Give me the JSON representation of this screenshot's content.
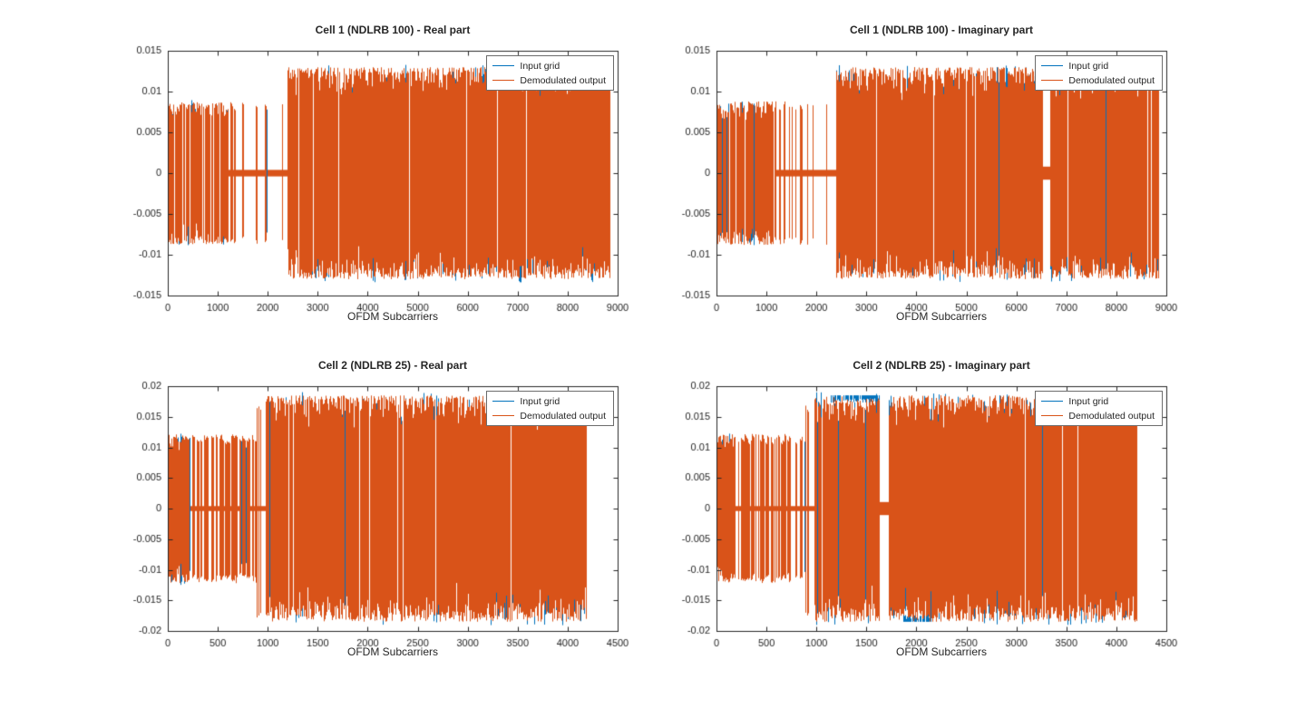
{
  "figure": {
    "background": "#ffffff",
    "axis_color": "#262626",
    "series_orange": "#D95319",
    "series_blue": "#0072BD"
  },
  "chart_data": [
    {
      "type": "line",
      "title": "Cell 1 (NDLRB 100) - Real part",
      "xlabel": "OFDM Subcarriers",
      "xlim": [
        0,
        9000
      ],
      "ylim": [
        -0.015,
        0.015
      ],
      "xticks": [
        0,
        1000,
        2000,
        3000,
        4000,
        5000,
        6000,
        7000,
        8000,
        9000
      ],
      "yticks": [
        -0.015,
        -0.01,
        -0.005,
        0,
        0.005,
        0.01,
        0.015
      ],
      "grid": false,
      "legend": {
        "position": "top-right",
        "entries": [
          {
            "label": "Input grid",
            "color": "#0072BD"
          },
          {
            "label": "Demodulated output",
            "color": "#D95319"
          }
        ]
      },
      "seed": 7,
      "envelope_segments": [
        {
          "x0": 0,
          "x1": 1180,
          "amplitude": 0.0087,
          "style": "dense",
          "fill": 0.9
        },
        {
          "x0": 1180,
          "x1": 2400,
          "amplitude": 0.0087,
          "style": "spikes",
          "fill": 0.3,
          "falloff": 0.75,
          "baseline": 0.0004
        },
        {
          "x0": 2400,
          "x1": 8840,
          "amplitude": 0.013,
          "style": "dense",
          "fill": 0.97
        }
      ],
      "gaps": [],
      "blue_caps": []
    },
    {
      "type": "line",
      "title": "Cell 1 (NDLRB 100) - Imaginary part",
      "xlabel": "OFDM Subcarriers",
      "xlim": [
        0,
        9000
      ],
      "ylim": [
        -0.015,
        0.015
      ],
      "xticks": [
        0,
        1000,
        2000,
        3000,
        4000,
        5000,
        6000,
        7000,
        8000,
        9000
      ],
      "yticks": [
        -0.015,
        -0.01,
        -0.005,
        0,
        0.005,
        0.01,
        0.015
      ],
      "grid": false,
      "legend": {
        "position": "top-right",
        "entries": [
          {
            "label": "Input grid",
            "color": "#0072BD"
          },
          {
            "label": "Demodulated output",
            "color": "#D95319"
          }
        ]
      },
      "seed": 13,
      "envelope_segments": [
        {
          "x0": 0,
          "x1": 1180,
          "amplitude": 0.0088,
          "style": "dense",
          "fill": 0.88
        },
        {
          "x0": 1180,
          "x1": 2400,
          "amplitude": 0.0088,
          "style": "spikes",
          "fill": 0.32,
          "falloff": 0.7,
          "baseline": 0.0004
        },
        {
          "x0": 2400,
          "x1": 8840,
          "amplitude": 0.013,
          "style": "dense",
          "fill": 0.97
        }
      ],
      "gaps": [
        [
          6520,
          6660
        ]
      ],
      "blue_caps": []
    },
    {
      "type": "line",
      "title": "Cell 2 (NDLRB 25) - Real part",
      "xlabel": "OFDM Subcarriers",
      "xlim": [
        0,
        4500
      ],
      "ylim": [
        -0.02,
        0.02
      ],
      "xticks": [
        0,
        500,
        1000,
        1500,
        2000,
        2500,
        3000,
        3500,
        4000,
        4500
      ],
      "yticks": [
        -0.02,
        -0.015,
        -0.01,
        -0.005,
        0,
        0.005,
        0.01,
        0.015,
        0.02
      ],
      "grid": false,
      "legend": {
        "position": "top-right",
        "entries": [
          {
            "label": "Input grid",
            "color": "#0072BD"
          },
          {
            "label": "Demodulated output",
            "color": "#D95319"
          }
        ]
      },
      "seed": 21,
      "envelope_segments": [
        {
          "x0": 0,
          "x1": 180,
          "amplitude": 0.0122,
          "style": "dense",
          "fill": 0.95
        },
        {
          "x0": 180,
          "x1": 880,
          "amplitude": 0.0122,
          "style": "spikes",
          "fill": 0.58,
          "falloff": 0.1,
          "baseline": 0.0004
        },
        {
          "x0": 880,
          "x1": 980,
          "amplitude": 0.018,
          "style": "spikes",
          "fill": 0.12,
          "falloff": 0.0,
          "baseline": 0.0004
        },
        {
          "x0": 980,
          "x1": 4180,
          "amplitude": 0.0185,
          "style": "dense",
          "fill": 0.96
        }
      ],
      "gaps": [],
      "blue_caps": []
    },
    {
      "type": "line",
      "title": "Cell 2 (NDLRB 25) - Imaginary part",
      "xlabel": "OFDM Subcarriers",
      "xlim": [
        0,
        4500
      ],
      "ylim": [
        -0.02,
        0.02
      ],
      "xticks": [
        0,
        500,
        1000,
        1500,
        2000,
        2500,
        3000,
        3500,
        4000,
        4500
      ],
      "yticks": [
        -0.02,
        -0.015,
        -0.01,
        -0.005,
        0,
        0.005,
        0.01,
        0.015,
        0.02
      ],
      "grid": false,
      "legend": {
        "position": "top-right",
        "entries": [
          {
            "label": "Input grid",
            "color": "#0072BD"
          },
          {
            "label": "Demodulated output",
            "color": "#D95319"
          }
        ]
      },
      "seed": 29,
      "envelope_segments": [
        {
          "x0": 0,
          "x1": 180,
          "amplitude": 0.0122,
          "style": "dense",
          "fill": 0.95
        },
        {
          "x0": 180,
          "x1": 880,
          "amplitude": 0.0122,
          "style": "spikes",
          "fill": 0.58,
          "falloff": 0.1,
          "baseline": 0.0004
        },
        {
          "x0": 880,
          "x1": 980,
          "amplitude": 0.018,
          "style": "spikes",
          "fill": 0.12,
          "falloff": 0.0,
          "baseline": 0.0004
        },
        {
          "x0": 980,
          "x1": 4200,
          "amplitude": 0.0185,
          "style": "dense",
          "fill": 0.96
        }
      ],
      "gaps": [
        [
          1630,
          1720
        ]
      ],
      "blue_caps": [
        {
          "x0": 1120,
          "x1": 1620,
          "amplitude": 0.0185,
          "side": "top"
        },
        {
          "x0": 1850,
          "x1": 2150,
          "amplitude": 0.0185,
          "side": "bottom"
        }
      ]
    }
  ]
}
